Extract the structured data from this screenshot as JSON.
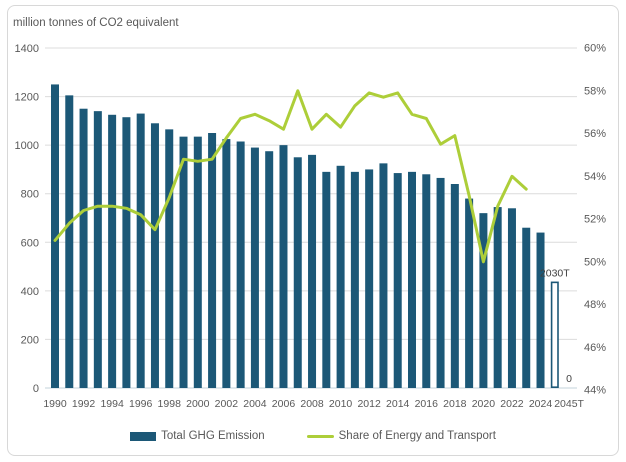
{
  "chart_data": {
    "type": "bar",
    "title": "million tonnes of CO2 equivalent",
    "categories": [
      "1990",
      "1991",
      "1992",
      "1993",
      "1994",
      "1995",
      "1996",
      "1997",
      "1998",
      "1999",
      "2000",
      "2001",
      "2002",
      "2003",
      "2004",
      "2005",
      "2006",
      "2007",
      "2008",
      "2009",
      "2010",
      "2011",
      "2012",
      "2013",
      "2014",
      "2015",
      "2016",
      "2017",
      "2018",
      "2019",
      "2020",
      "2021",
      "2022",
      "2023",
      "2024",
      "2030T",
      "2045T"
    ],
    "x_tick_labels": [
      "1990",
      "1992",
      "1994",
      "1996",
      "1998",
      "2000",
      "2002",
      "2004",
      "2006",
      "2008",
      "2010",
      "2012",
      "2014",
      "2016",
      "2018",
      "2020",
      "2022",
      "2024",
      "2045T"
    ],
    "series": [
      {
        "name": "Total GHG Emission",
        "type": "bar",
        "axis": "left",
        "color": "#1c5877",
        "values": [
          1250,
          1205,
          1150,
          1140,
          1125,
          1115,
          1130,
          1090,
          1065,
          1035,
          1035,
          1050,
          1025,
          1015,
          990,
          975,
          1000,
          950,
          960,
          890,
          915,
          890,
          900,
          925,
          885,
          890,
          880,
          865,
          840,
          780,
          720,
          745,
          740,
          660,
          640,
          435,
          0
        ]
      },
      {
        "name": "Share of Energy and Transport",
        "type": "line",
        "axis": "right",
        "color": "#adce39",
        "values": [
          51.0,
          51.8,
          52.4,
          52.6,
          52.6,
          52.5,
          52.2,
          51.5,
          53.0,
          54.8,
          54.7,
          54.8,
          55.8,
          56.7,
          56.9,
          56.6,
          56.2,
          58.0,
          56.2,
          56.9,
          56.3,
          57.3,
          57.9,
          57.7,
          57.9,
          56.9,
          56.7,
          55.5,
          55.9,
          53.1,
          50.0,
          52.6,
          54.0,
          53.4,
          null,
          null,
          null
        ]
      }
    ],
    "left_axis": {
      "min": 0,
      "max": 1400,
      "step": 200
    },
    "right_axis": {
      "min": 44,
      "max": 60,
      "step": 2,
      "format": "percent"
    },
    "grid": true,
    "legend_position": "bottom",
    "target_bar_indices": [
      35
    ],
    "annotations": [
      {
        "text": "2030T",
        "category_index": 35
      },
      {
        "text": "0",
        "category_index": 36
      }
    ]
  }
}
